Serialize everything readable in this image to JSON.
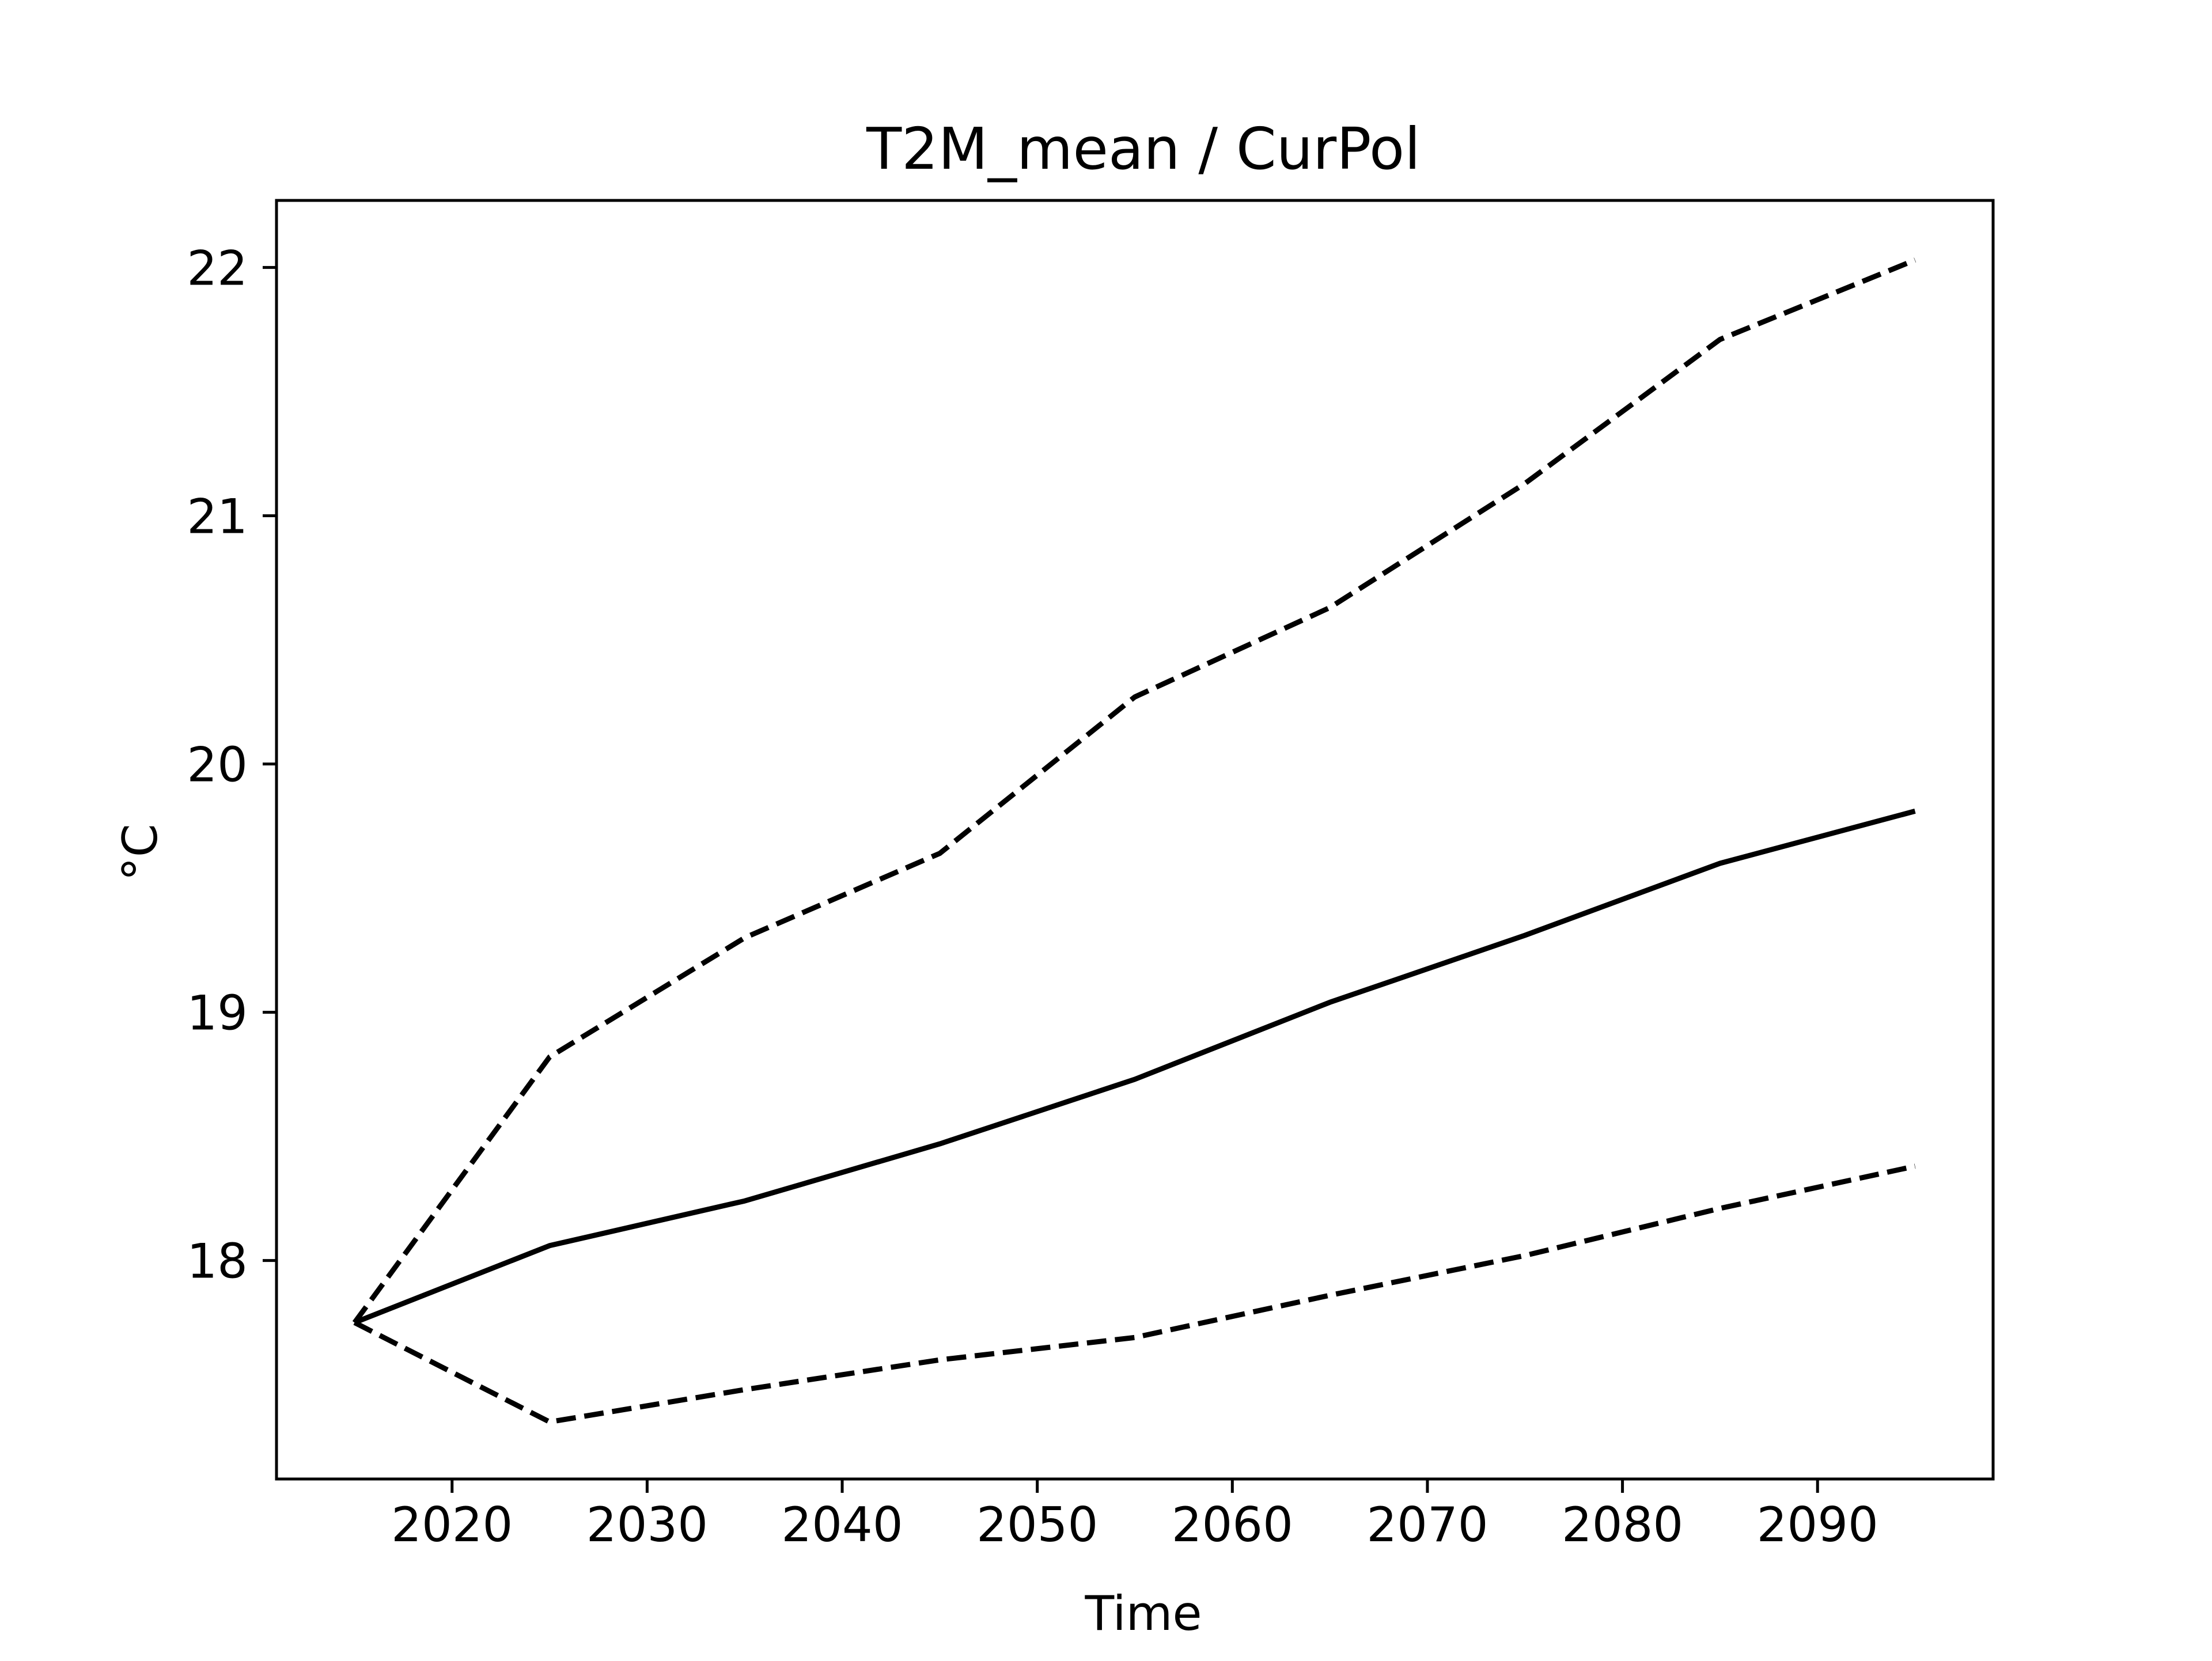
{
  "chart_data": {
    "type": "line",
    "title": "T2M_mean / CurPol",
    "xlabel": "Time",
    "ylabel": "°C",
    "xlim": [
      2011,
      2099
    ],
    "ylim": [
      17.12,
      22.27
    ],
    "xticks": [
      2020,
      2030,
      2040,
      2050,
      2060,
      2070,
      2080,
      2090
    ],
    "yticks": [
      18,
      19,
      20,
      21,
      22
    ],
    "grid": false,
    "x": [
      2015,
      2025,
      2035,
      2045,
      2055,
      2065,
      2075,
      2085,
      2095
    ],
    "series": [
      {
        "style": "dashed",
        "color": "#000000",
        "values": [
          17.75,
          18.82,
          19.3,
          19.64,
          20.27,
          20.63,
          21.13,
          21.71,
          22.03
        ]
      },
      {
        "style": "solid",
        "color": "#000000",
        "values": [
          17.75,
          18.06,
          18.24,
          18.47,
          18.73,
          19.04,
          19.31,
          19.6,
          19.81
        ]
      },
      {
        "style": "dashed",
        "color": "#000000",
        "values": [
          17.75,
          17.35,
          17.48,
          17.6,
          17.69,
          17.86,
          18.02,
          18.21,
          18.38
        ]
      }
    ]
  }
}
